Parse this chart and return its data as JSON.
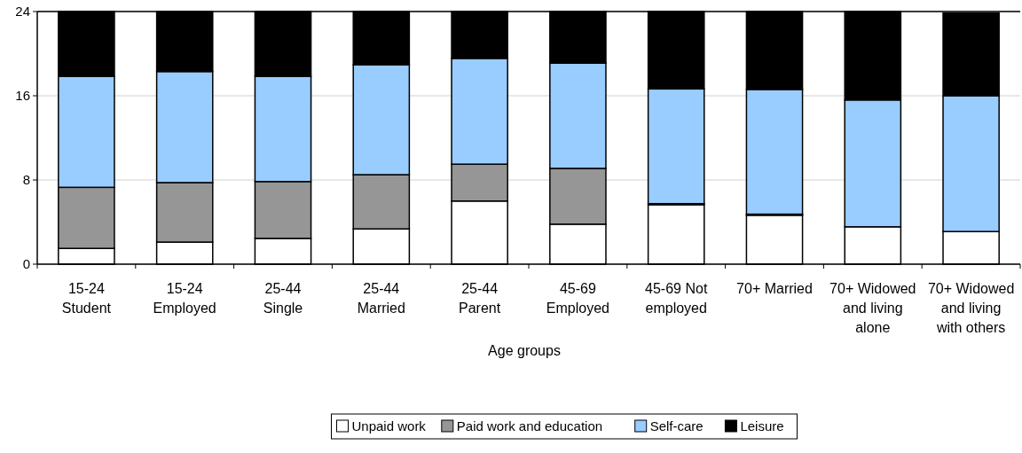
{
  "chart_data": {
    "type": "bar",
    "stacked": true,
    "xlabel": "Age groups",
    "categories": [
      "15-24 Student",
      "15-24 Employed",
      "25-44 Single",
      "25-44 Married",
      "25-44 Parent",
      "45-69 Employed",
      "45-69 Not employed",
      "70+ Married",
      "70+ Widowed and living alone",
      "70+ Widowed and living with others"
    ],
    "series": [
      {
        "name": "Unpaid work",
        "color": "#ffffff",
        "values": [
          1.5,
          2.1,
          2.45,
          3.35,
          6.0,
          3.8,
          5.65,
          4.65,
          3.55,
          3.1
        ]
      },
      {
        "name": "Paid work and education",
        "color": "#969696",
        "values": [
          5.8,
          5.65,
          5.4,
          5.15,
          3.5,
          5.3,
          0.1,
          0.1,
          0,
          0
        ]
      },
      {
        "name": "Self-care",
        "color": "#99ccff",
        "values": [
          10.55,
          10.55,
          10.0,
          10.45,
          10.05,
          10.0,
          10.9,
          11.85,
          12.05,
          12.9
        ]
      },
      {
        "name": "Leisure",
        "color": "#000000",
        "values": [
          6.15,
          5.7,
          6.15,
          5.05,
          4.45,
          4.9,
          7.35,
          7.4,
          8.4,
          7.85
        ]
      }
    ],
    "ylim": [
      0,
      24
    ],
    "yticks": [
      0,
      8,
      16,
      24
    ],
    "grid": "y",
    "legend": "bottom"
  }
}
